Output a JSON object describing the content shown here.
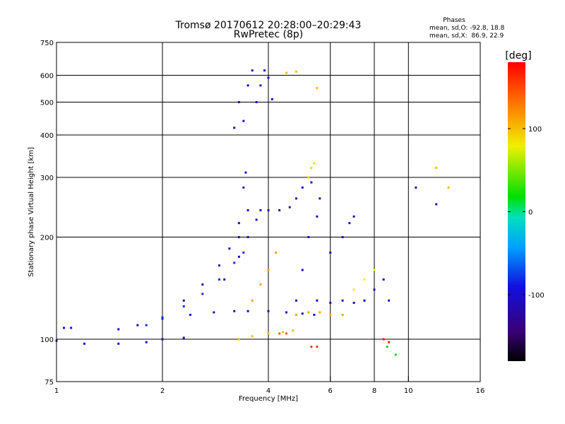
{
  "chart_data": {
    "type": "scatter",
    "title": "Tromsø 20170612 20:28:00–20:29:43",
    "subtitle": "RwPretec (8p)",
    "xlabel": "Frequency [MHz]",
    "ylabel": "Stationary phase Virtual Height [km]",
    "xscale": "log",
    "yscale": "log",
    "xlim": [
      1,
      16
    ],
    "ylim": [
      75,
      750
    ],
    "x_ticks": [
      1,
      2,
      4,
      6,
      8,
      10,
      16
    ],
    "x_tick_labels": [
      "1",
      "2",
      "4",
      "6",
      "8",
      "10",
      "16"
    ],
    "x_gridlines": [
      2,
      4,
      6,
      8,
      10
    ],
    "y_ticks": [
      75,
      100,
      200,
      300,
      400,
      500,
      600,
      750
    ],
    "y_tick_labels": [
      "75",
      "100",
      "200",
      "300",
      "400",
      "500",
      "600",
      "750"
    ],
    "y_gridlines": [
      100,
      200,
      300,
      400,
      500,
      600
    ],
    "grid": true,
    "stats": {
      "header": "Phases",
      "o_line": "mean, sd,O: -92.8, 18.8",
      "x_line": "mean, sd,X:  86.9, 22.9"
    },
    "colorbar": {
      "label": "[deg]",
      "range": [
        -180,
        180
      ],
      "ticks": [
        100,
        0,
        -100
      ],
      "tick_labels": [
        "100",
        "0",
        "-100"
      ],
      "placement": "right"
    },
    "series": [
      {
        "x": [
          1.0,
          1.2,
          1.5,
          1.8,
          2.0,
          2.3
        ],
        "y": [
          99,
          97,
          97,
          98,
          100,
          101
        ],
        "phase": -100
      },
      {
        "x": [
          1.05,
          1.1
        ],
        "y": [
          108,
          108
        ],
        "phase": -95
      },
      {
        "x": [
          1.5,
          1.7,
          2.0,
          2.4,
          2.8,
          3.2,
          3.5,
          4.0,
          4.5,
          5.0,
          5.4
        ],
        "y": [
          107,
          110,
          115,
          118,
          120,
          121,
          121,
          121,
          120,
          119,
          118
        ],
        "phase": -105
      },
      {
        "x": [
          1.8,
          2.0,
          2.3,
          2.6,
          2.9,
          3.2,
          3.4
        ],
        "y": [
          110,
          116,
          125,
          136,
          150,
          168,
          180
        ],
        "phase": -80
      },
      {
        "x": [
          2.3,
          2.6,
          2.9,
          3.1,
          3.3,
          3.4,
          3.45
        ],
        "y": [
          130,
          145,
          165,
          185,
          220,
          280,
          310
        ],
        "phase": -110
      },
      {
        "x": [
          3.0,
          3.3,
          3.5,
          3.7
        ],
        "y": [
          150,
          175,
          200,
          225
        ],
        "phase": -110
      },
      {
        "x": [
          3.3,
          3.5,
          3.8,
          4.0,
          4.3
        ],
        "y": [
          200,
          240,
          240,
          240,
          240
        ],
        "phase": -110
      },
      {
        "x": [
          3.3,
          3.5,
          3.6,
          3.7,
          3.8,
          3.9,
          4.0,
          4.1
        ],
        "y": [
          500,
          560,
          620,
          500,
          560,
          620,
          590,
          510
        ],
        "phase": -105
      },
      {
        "x": [
          3.2,
          3.4
        ],
        "y": [
          420,
          440
        ],
        "phase": -100
      },
      {
        "x": [
          3.6,
          3.8,
          4.0,
          4.2
        ],
        "y": [
          130,
          145,
          160,
          180
        ],
        "phase": 110
      },
      {
        "x": [
          3.3,
          3.6,
          4.0,
          4.4,
          4.7
        ],
        "y": [
          100,
          102,
          104,
          105,
          106
        ],
        "phase": 100
      },
      {
        "x": [
          4.3,
          4.5
        ],
        "y": [
          104,
          104
        ],
        "phase": 140
      },
      {
        "x": [
          4.6,
          4.8,
          5.0,
          5.3
        ],
        "y": [
          245,
          260,
          280,
          290
        ],
        "phase": -110
      },
      {
        "x": [
          4.8,
          5.0,
          5.2,
          5.5,
          5.6
        ],
        "y": [
          130,
          160,
          200,
          230,
          260
        ],
        "phase": -110
      },
      {
        "x": [
          5.2,
          5.3,
          5.4
        ],
        "y": [
          300,
          320,
          330
        ],
        "phase": 90
      },
      {
        "x": [
          4.8,
          5.2,
          5.6,
          6.0,
          6.5
        ],
        "y": [
          118,
          120,
          120,
          118,
          118
        ],
        "phase": 110
      },
      {
        "x": [
          5.5,
          6.0,
          6.5,
          7.0,
          7.5
        ],
        "y": [
          130,
          128,
          130,
          128,
          130
        ],
        "phase": -100
      },
      {
        "x": [
          6.0,
          6.5,
          6.8,
          7.0
        ],
        "y": [
          180,
          200,
          220,
          230
        ],
        "phase": -110
      },
      {
        "x": [
          7.5,
          8.0,
          8.5,
          8.8
        ],
        "y": [
          130,
          140,
          150,
          130
        ],
        "phase": -100
      },
      {
        "x": [
          7.0,
          7.5,
          8.0
        ],
        "y": [
          140,
          150,
          160
        ],
        "phase": 80
      },
      {
        "x": [
          4.5,
          4.8,
          5.5
        ],
        "y": [
          610,
          615,
          550
        ],
        "phase": 100
      },
      {
        "x": [
          10.5,
          12.0
        ],
        "y": [
          280,
          250
        ],
        "phase": -100
      },
      {
        "x": [
          12.0,
          13.0
        ],
        "y": [
          320,
          280
        ],
        "phase": 100
      },
      {
        "x": [
          8.7,
          9.2
        ],
        "y": [
          95,
          90
        ],
        "phase": 20
      },
      {
        "x": [
          5.3,
          5.5
        ],
        "y": [
          95,
          95
        ],
        "phase": 160
      },
      {
        "x": [
          8.5,
          8.8
        ],
        "y": [
          100,
          98
        ],
        "phase": 170
      }
    ]
  }
}
